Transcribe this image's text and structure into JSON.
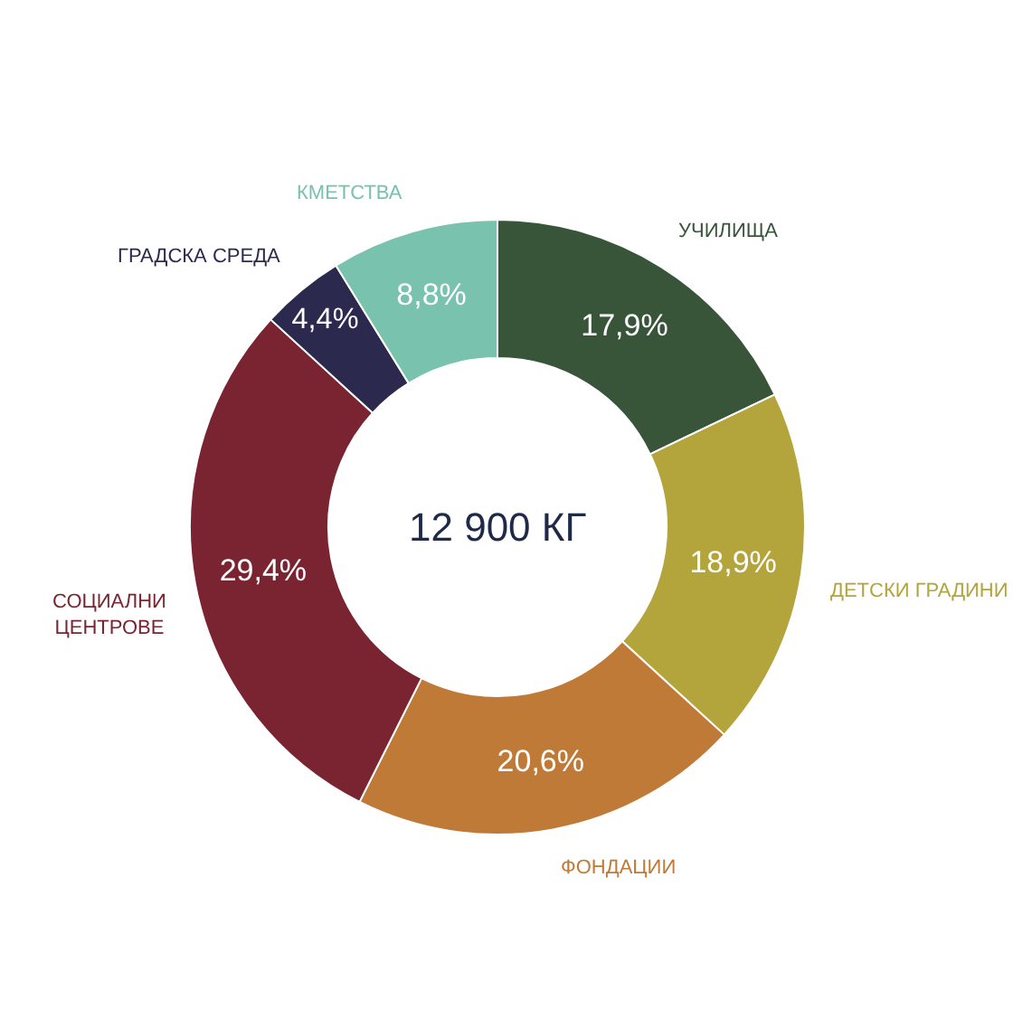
{
  "chart_data": {
    "type": "donut",
    "categories": [
      "УЧИЛИЩА",
      "ДЕТСКИ ГРАДИНИ",
      "ФОНДАЦИИ",
      "СОЦИАЛНИ ЦЕНТРОВЕ",
      "ГРАДСКА СРЕДА",
      "КМЕТСТВА"
    ],
    "values": [
      17.9,
      18.9,
      20.6,
      29.4,
      4.4,
      8.8
    ],
    "value_labels": [
      "17,9%",
      "18,9%",
      "20,6%",
      "29,4%",
      "4,4%",
      "8,8%"
    ],
    "colors": [
      "#38553a",
      "#b3a43c",
      "#c07a38",
      "#7a2431",
      "#2b2a4e",
      "#79c2ad"
    ],
    "annotations": [
      "12 900 КГ"
    ],
    "legend": false
  }
}
